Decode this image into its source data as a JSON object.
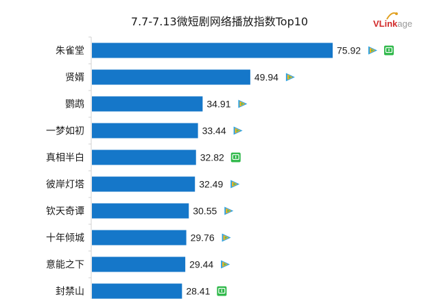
{
  "chart_data": {
    "type": "bar",
    "orientation": "horizontal",
    "title": "7.7-7.13微短剧网络播放指数Top10",
    "xlabel": "",
    "ylabel": "",
    "xlim": [
      0,
      80
    ],
    "grid": false,
    "legend": "none",
    "bar_color": "#1577c9",
    "categories": [
      "朱雀堂",
      "贤婿",
      "鹦鹉",
      "一梦如初",
      "真相半白",
      "彼岸灯塔",
      "钦天奇谭",
      "十年倾城",
      "意能之下",
      "封禁山"
    ],
    "values": [
      75.92,
      49.94,
      34.91,
      33.44,
      32.82,
      32.49,
      30.55,
      29.76,
      29.44,
      28.41
    ],
    "labels": [
      "75.92",
      "49.94",
      "34.91",
      "33.44",
      "32.82",
      "32.49",
      "30.55",
      "29.76",
      "29.44",
      "28.41"
    ],
    "platform_icons": [
      [
        "tencent-video",
        "iqiyi"
      ],
      [
        "tencent-video"
      ],
      [
        "tencent-video"
      ],
      [
        "tencent-video"
      ],
      [
        "iqiyi"
      ],
      [
        "tencent-video"
      ],
      [
        "tencent-video"
      ],
      [
        "tencent-video"
      ],
      [
        "tencent-video"
      ],
      [
        "iqiyi"
      ]
    ]
  },
  "logo": {
    "brand_v": "VLink",
    "brand_rest": "age"
  }
}
